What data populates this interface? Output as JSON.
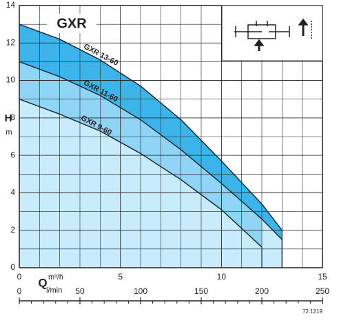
{
  "chart_data": {
    "type": "line",
    "title": "GXR",
    "y_label": "H",
    "y_unit": "m",
    "x_label": "Q",
    "x_unit": "m³/h",
    "x2_unit": "l/min",
    "code": "72.1219",
    "x": [
      0,
      2,
      4,
      6,
      8,
      10,
      12,
      13
    ],
    "series": [
      {
        "name": "GXR 13-60",
        "color": "#3cb4ea",
        "values": [
          13,
          12.2,
          11.1,
          9.7,
          7.9,
          5.7,
          3.4,
          2.0
        ]
      },
      {
        "name": "GXR 11-60",
        "color": "#8fd4f4",
        "values": [
          11,
          10.2,
          9.2,
          7.9,
          6.3,
          4.5,
          2.6,
          1.5
        ]
      },
      {
        "name": "GXR 9-60",
        "color": "#c8ecfb",
        "values": [
          9,
          8.2,
          7.3,
          6.1,
          4.7,
          3.1,
          1.1,
          null
        ]
      }
    ],
    "xlim": [
      0,
      15
    ],
    "xticks": [
      0,
      5,
      10,
      15
    ],
    "ylim": [
      0,
      14
    ],
    "yticks": [
      0,
      2,
      4,
      6,
      8,
      10,
      12,
      14
    ],
    "x2lim": [
      0,
      250
    ],
    "x2ticks": [
      0,
      50,
      100,
      150,
      200,
      250
    ],
    "grid": true
  }
}
